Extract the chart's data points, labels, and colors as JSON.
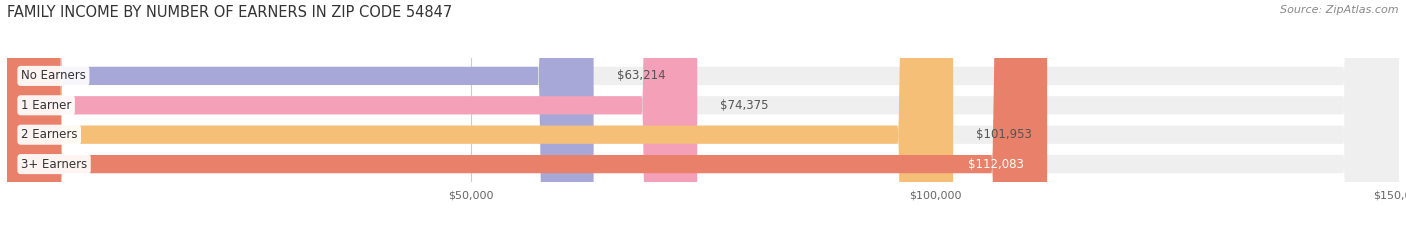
{
  "title": "FAMILY INCOME BY NUMBER OF EARNERS IN ZIP CODE 54847",
  "source": "Source: ZipAtlas.com",
  "categories": [
    "No Earners",
    "1 Earner",
    "2 Earners",
    "3+ Earners"
  ],
  "values": [
    63214,
    74375,
    101953,
    112083
  ],
  "bar_colors": [
    "#a8a8d8",
    "#f4a0b8",
    "#f5bf78",
    "#e8806a"
  ],
  "bar_bg_color": "#efefef",
  "label_colors": [
    "#555555",
    "#555555",
    "#555555",
    "#ffffff"
  ],
  "xlim": [
    0,
    150000
  ],
  "figsize": [
    14.06,
    2.33
  ],
  "dpi": 100,
  "bar_height": 0.62,
  "background_color": "#ffffff",
  "grid_color": "#cccccc",
  "title_fontsize": 10.5,
  "label_fontsize": 8.5,
  "value_fontsize": 8.5,
  "tick_fontsize": 8,
  "source_fontsize": 8
}
